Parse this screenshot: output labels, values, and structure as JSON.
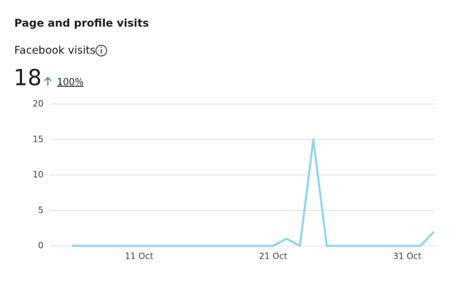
{
  "chart_data": {
    "type": "line",
    "title": "Page and profile visits",
    "subtitle": "Facebook visits",
    "total": 18,
    "change": "100%",
    "categories": [
      null,
      null,
      null,
      null,
      null,
      "11 Oct",
      null,
      null,
      null,
      null,
      null,
      null,
      null,
      null,
      null,
      "21 Oct",
      null,
      null,
      null,
      null,
      null,
      null,
      null,
      null,
      null,
      "31 Oct",
      null,
      null
    ],
    "values": [
      0,
      0,
      0,
      0,
      0,
      0,
      0,
      0,
      0,
      0,
      0,
      0,
      0,
      0,
      0,
      0,
      1,
      0,
      15,
      0,
      0,
      0,
      0,
      0,
      0,
      0,
      0,
      2
    ],
    "color": "#8fd5f3",
    "ylim": [
      0,
      20
    ],
    "yticks": [
      0,
      5,
      10,
      15,
      20
    ],
    "grid": true
  }
}
